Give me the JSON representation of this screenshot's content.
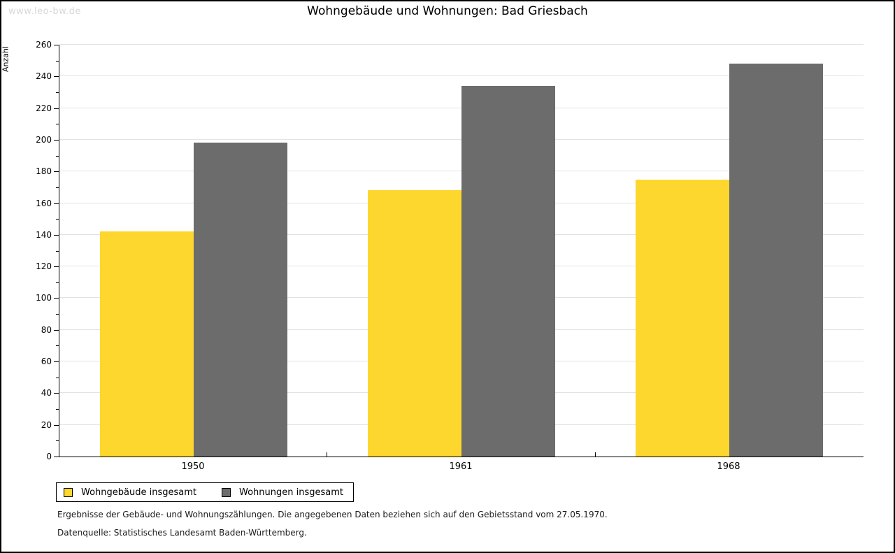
{
  "watermark": "www.leo-bw.de",
  "chart_data": {
    "type": "bar",
    "title": "Wohngebäude und Wohnungen: Bad Griesbach",
    "ylabel": "Anzahl",
    "xlabel": "",
    "categories": [
      "1950",
      "1961",
      "1968"
    ],
    "series": [
      {
        "name": "Wohngebäude insgesamt",
        "color": "#FDD62E",
        "values": [
          142,
          168,
          175
        ]
      },
      {
        "name": "Wohnungen insgesamt",
        "color": "#6C6C6C",
        "values": [
          198,
          234,
          248
        ]
      }
    ],
    "ylim": [
      0,
      260
    ],
    "ytick_step": 20,
    "yminor_step": 10,
    "grid": true,
    "legend_position": "bottom-left"
  },
  "footer": {
    "line1": "Ergebnisse der Gebäude- und Wohnungszählungen. Die angegebenen Daten beziehen sich auf den Gebietsstand vom 27.05.1970.",
    "line2": "Datenquelle: Statistisches Landesamt Baden-Württemberg."
  }
}
